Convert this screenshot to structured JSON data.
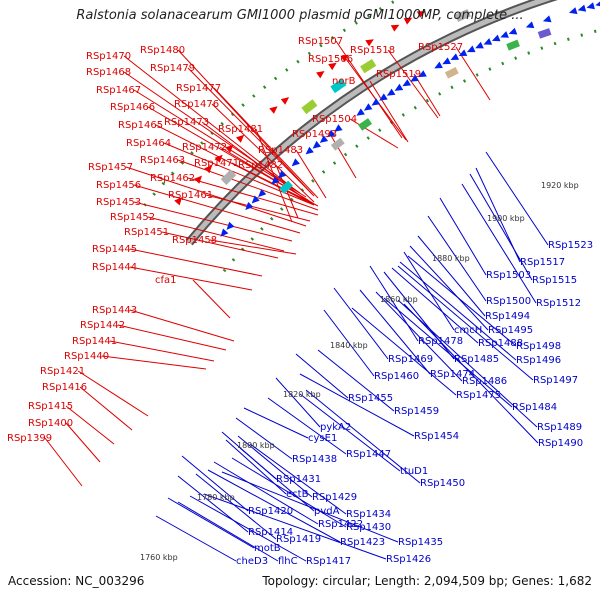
{
  "title": "Ralstonia solanacearum GMI1000 plasmid pGMI1000MP, complete ...",
  "footer": {
    "accession": "Accession: NC_003296",
    "topology": "Topology: circular; Length: 2,094,509 bp; Genes: 1,682"
  },
  "colors": {
    "forward_label": "#dd0000",
    "reverse_label": "#0000cc",
    "backbone": "#888888"
  },
  "kbp_ticks": [
    "1760 kbp",
    "1780 kbp",
    "1800 kbp",
    "1820 kbp",
    "1840 kbp",
    "1860 kbp",
    "1880 kbp",
    "1900 kbp",
    "1920 kbp"
  ],
  "forward_labels": [
    "RSp1399",
    "RSp1400",
    "RSp1415",
    "RSp1416",
    "RSp1421",
    "RSp1440",
    "RSp1441",
    "RSp1442",
    "RSp1443",
    "cfa1",
    "RSp1444",
    "RSp1445",
    "RSp1451",
    "RSp1452",
    "RSp1453",
    "RSp1456",
    "RSp1457",
    "RSp1458",
    "RSp1461",
    "RSp1462",
    "RSp1463",
    "RSp1464",
    "RSp1465",
    "RSp1466",
    "RSp1467",
    "RSp1468",
    "RSp1470",
    "RSp1471",
    "RSp1472",
    "RSp1473",
    "RSp1476",
    "RSp1477",
    "RSp1479",
    "RSp1480",
    "RSp1481",
    "RSp1482",
    "RSp1483",
    "RSp1493",
    "RSp1504",
    "norB",
    "RSp1506",
    "RSp1507",
    "RSp1518",
    "RSp1519",
    "RSp1527"
  ],
  "reverse_labels": [
    "RSp1523",
    "RSp1517",
    "RSp1515",
    "RSp1512",
    "RSp1503",
    "RSp1500",
    "RSp1494",
    "RSp1495",
    "cmcH",
    "RSp1498",
    "RSp1496",
    "RSp1478",
    "RSp1488",
    "RSp1485",
    "RSp1497",
    "RSp1469",
    "RSp1474",
    "RSp1486",
    "RSp1460",
    "RSp1475",
    "RSp1484",
    "RSp1455",
    "RSp1459",
    "RSp1489",
    "pykA2",
    "RSp1454",
    "RSp1490",
    "cysE1",
    "RSp1447",
    "RSp1438",
    "ttuD1",
    "RSp1450",
    "RSp1431",
    "ectB",
    "RSp1429",
    "pvdA",
    "RSp1434",
    "RSp1420",
    "RSp1422",
    "RSp1430",
    "RSp1414",
    "RSp1419",
    "RSp1423",
    "RSp1435",
    "motB",
    "flhC",
    "RSp1417",
    "RSp1426",
    "cheD3"
  ]
}
